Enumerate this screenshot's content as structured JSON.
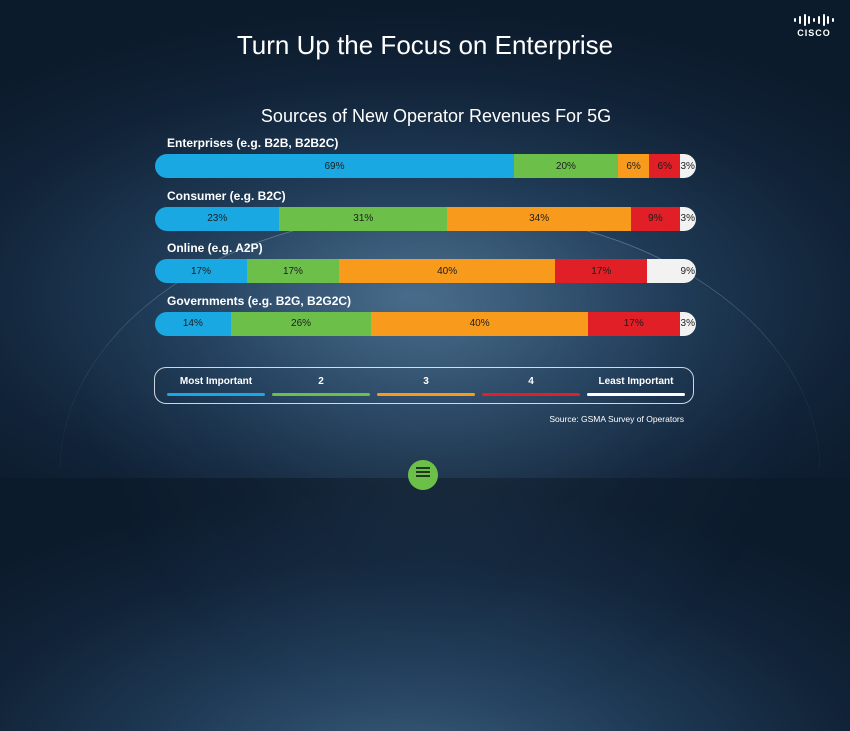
{
  "header": {
    "title": "Turn Up the Focus on Enterprise",
    "logo_text": "CISCO"
  },
  "chart_data": {
    "type": "bar",
    "orientation": "horizontal",
    "stacked": true,
    "title": "Sources of New Operator Revenues For 5G",
    "categories": [
      "Enterprises (e.g. B2B, B2B2C)",
      "Consumer (e.g. B2C)",
      "Online (e.g. A2P)",
      "Governments (e.g. B2G, B2G2C)"
    ],
    "series": [
      {
        "name": "Most Important",
        "color": "#19a8e2",
        "values": [
          69,
          23,
          17,
          14
        ],
        "labels": [
          "69%",
          "23%",
          "17%",
          "14%"
        ]
      },
      {
        "name": "2",
        "color": "#6cc04a",
        "values": [
          20,
          31,
          17,
          26
        ],
        "labels": [
          "20%",
          "31%",
          "17%",
          "26%"
        ]
      },
      {
        "name": "3",
        "color": "#f89b1c",
        "values": [
          6,
          34,
          40,
          40
        ],
        "labels": [
          "6%",
          "34%",
          "40%",
          "40%"
        ]
      },
      {
        "name": "4",
        "color": "#e11f26",
        "values": [
          6,
          9,
          17,
          17
        ],
        "labels": [
          "6%",
          "9%",
          "17%",
          "17%"
        ]
      },
      {
        "name": "Least Important",
        "color": "#f2f2f2",
        "values": [
          3,
          3,
          9,
          3
        ],
        "labels": [
          "3%",
          "3%",
          "9%",
          "3%"
        ]
      }
    ],
    "legend_position": "bottom",
    "source": "Source: GSMA Survey of Operators"
  }
}
